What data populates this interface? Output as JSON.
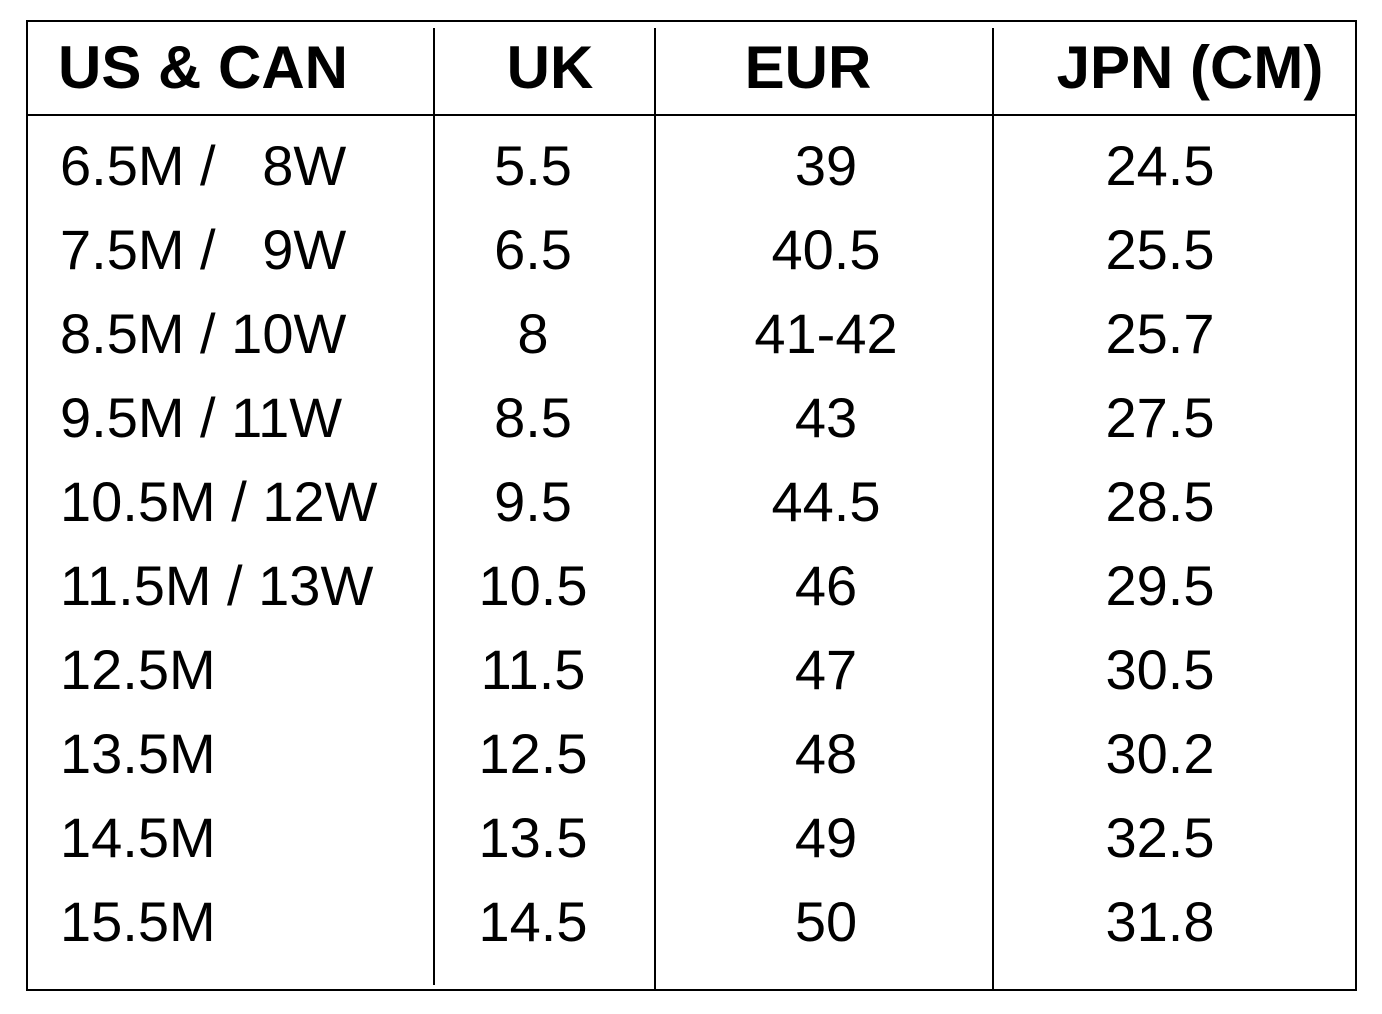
{
  "table": {
    "header": [
      "US & CAN",
      "UK",
      "EUR",
      "JPN (CM)"
    ],
    "rows": [
      [
        "6.5M /   8W",
        "5.5",
        "39",
        "24.5"
      ],
      [
        "7.5M /   9W",
        "6.5",
        "40.5",
        "25.5"
      ],
      [
        "8.5M / 10W",
        "8",
        "41-42",
        "25.7"
      ],
      [
        "9.5M / 11W",
        "8.5",
        "43",
        "27.5"
      ],
      [
        "10.5M / 12W",
        "9.5",
        "44.5",
        "28.5"
      ],
      [
        "11.5M / 13W",
        "10.5",
        "46",
        "29.5"
      ],
      [
        "12.5M",
        "11.5",
        "47",
        "30.5"
      ],
      [
        "13.5M",
        "12.5",
        "48",
        "30.2"
      ],
      [
        "14.5M",
        "13.5",
        "49",
        "32.5"
      ],
      [
        "15.5M",
        "14.5",
        "50",
        "31.8"
      ]
    ]
  }
}
